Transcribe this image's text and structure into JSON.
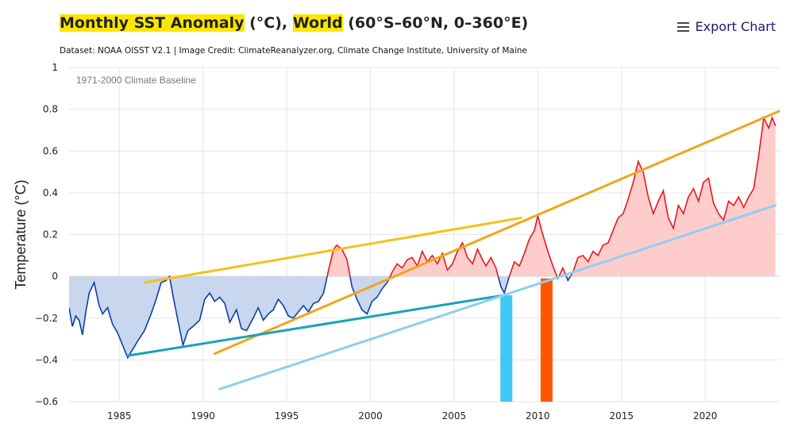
{
  "header": {
    "title_part1": "Monthly SST Anomaly",
    "title_part2": " (°C), ",
    "title_part3": "World",
    "title_part4": " (60°S–60°N",
    "title_part5": ", 0–360°E)",
    "subtitle": "Dataset: NOAA OISST V2.1 | Image Credit: ClimateReanalyzer.org, Climate Change Institute, University of Maine",
    "export_label": "Export Chart"
  },
  "chart_data": {
    "type": "area",
    "title": "Monthly SST Anomaly (°C), World (60°S–60°N, 0–360°E)",
    "ylabel": "Temperature (°C)",
    "xlabel": "",
    "annotation": "1971-2000 Climate Baseline",
    "xlim": [
      1982.0,
      2024.5
    ],
    "ylim": [
      -0.6,
      1
    ],
    "x_ticks": [
      1985,
      1990,
      1995,
      2000,
      2005,
      2010,
      2015,
      2020
    ],
    "y_ticks": [
      -0.6,
      -0.4,
      -0.2,
      0,
      0.2,
      0.4,
      0.6,
      0.8,
      1
    ],
    "y_tick_labels": [
      "−0.6",
      "−0.4",
      "−0.2",
      "0",
      "0.2",
      "0.4",
      "0.6",
      "0.8",
      "1"
    ],
    "positive_color": "#e41a1c",
    "positive_fill": "#ffcccc",
    "negative_color": "#0d3ea6",
    "negative_fill": "#c8d6ee",
    "series": [
      {
        "name": "SST anomaly",
        "points": [
          [
            1982.0,
            -0.15
          ],
          [
            1982.2,
            -0.24
          ],
          [
            1982.4,
            -0.19
          ],
          [
            1982.6,
            -0.21
          ],
          [
            1982.8,
            -0.28
          ],
          [
            1983.0,
            -0.17
          ],
          [
            1983.2,
            -0.08
          ],
          [
            1983.5,
            -0.03
          ],
          [
            1983.8,
            -0.14
          ],
          [
            1984.0,
            -0.18
          ],
          [
            1984.3,
            -0.15
          ],
          [
            1984.6,
            -0.23
          ],
          [
            1984.9,
            -0.27
          ],
          [
            1985.2,
            -0.33
          ],
          [
            1985.5,
            -0.39
          ],
          [
            1985.8,
            -0.35
          ],
          [
            1986.1,
            -0.31
          ],
          [
            1986.5,
            -0.26
          ],
          [
            1986.9,
            -0.18
          ],
          [
            1987.2,
            -0.11
          ],
          [
            1987.5,
            -0.03
          ],
          [
            1987.8,
            -0.02
          ],
          [
            1988.0,
            0.0
          ],
          [
            1988.2,
            -0.09
          ],
          [
            1988.5,
            -0.21
          ],
          [
            1988.8,
            -0.33
          ],
          [
            1989.1,
            -0.26
          ],
          [
            1989.4,
            -0.24
          ],
          [
            1989.8,
            -0.21
          ],
          [
            1990.1,
            -0.11
          ],
          [
            1990.4,
            -0.08
          ],
          [
            1990.7,
            -0.12
          ],
          [
            1991.0,
            -0.1
          ],
          [
            1991.3,
            -0.13
          ],
          [
            1991.6,
            -0.22
          ],
          [
            1992.0,
            -0.16
          ],
          [
            1992.3,
            -0.25
          ],
          [
            1992.6,
            -0.26
          ],
          [
            1993.0,
            -0.2
          ],
          [
            1993.3,
            -0.15
          ],
          [
            1993.6,
            -0.21
          ],
          [
            1993.9,
            -0.18
          ],
          [
            1994.2,
            -0.16
          ],
          [
            1994.5,
            -0.11
          ],
          [
            1994.8,
            -0.14
          ],
          [
            1995.1,
            -0.19
          ],
          [
            1995.4,
            -0.2
          ],
          [
            1995.7,
            -0.17
          ],
          [
            1996.0,
            -0.14
          ],
          [
            1996.3,
            -0.17
          ],
          [
            1996.6,
            -0.13
          ],
          [
            1996.9,
            -0.12
          ],
          [
            1997.2,
            -0.08
          ],
          [
            1997.5,
            0.03
          ],
          [
            1997.8,
            0.13
          ],
          [
            1998.0,
            0.15
          ],
          [
            1998.3,
            0.13
          ],
          [
            1998.6,
            0.08
          ],
          [
            1998.9,
            -0.05
          ],
          [
            1999.2,
            -0.11
          ],
          [
            1999.5,
            -0.16
          ],
          [
            1999.8,
            -0.18
          ],
          [
            2000.1,
            -0.12
          ],
          [
            2000.4,
            -0.1
          ],
          [
            2000.7,
            -0.06
          ],
          [
            2001.0,
            -0.03
          ],
          [
            2001.3,
            0.02
          ],
          [
            2001.6,
            0.06
          ],
          [
            2001.9,
            0.04
          ],
          [
            2002.2,
            0.08
          ],
          [
            2002.5,
            0.09
          ],
          [
            2002.8,
            0.05
          ],
          [
            2003.1,
            0.12
          ],
          [
            2003.4,
            0.07
          ],
          [
            2003.7,
            0.1
          ],
          [
            2004.0,
            0.06
          ],
          [
            2004.3,
            0.11
          ],
          [
            2004.6,
            0.03
          ],
          [
            2004.9,
            0.06
          ],
          [
            2005.2,
            0.12
          ],
          [
            2005.5,
            0.16
          ],
          [
            2005.8,
            0.09
          ],
          [
            2006.1,
            0.06
          ],
          [
            2006.4,
            0.13
          ],
          [
            2006.7,
            0.08
          ],
          [
            2006.9,
            0.05
          ],
          [
            2007.2,
            0.09
          ],
          [
            2007.5,
            0.04
          ],
          [
            2007.8,
            -0.05
          ],
          [
            2008.0,
            -0.08
          ],
          [
            2008.3,
            0.0
          ],
          [
            2008.6,
            0.07
          ],
          [
            2008.9,
            0.05
          ],
          [
            2009.2,
            0.11
          ],
          [
            2009.5,
            0.18
          ],
          [
            2009.8,
            0.22
          ],
          [
            2010.0,
            0.29
          ],
          [
            2010.3,
            0.2
          ],
          [
            2010.6,
            0.12
          ],
          [
            2010.9,
            0.05
          ],
          [
            2011.2,
            -0.01
          ],
          [
            2011.5,
            0.04
          ],
          [
            2011.8,
            -0.02
          ],
          [
            2012.1,
            0.02
          ],
          [
            2012.4,
            0.09
          ],
          [
            2012.7,
            0.1
          ],
          [
            2013.0,
            0.07
          ],
          [
            2013.3,
            0.12
          ],
          [
            2013.6,
            0.1
          ],
          [
            2013.9,
            0.15
          ],
          [
            2014.2,
            0.16
          ],
          [
            2014.5,
            0.22
          ],
          [
            2014.8,
            0.28
          ],
          [
            2015.1,
            0.3
          ],
          [
            2015.4,
            0.37
          ],
          [
            2015.7,
            0.45
          ],
          [
            2016.0,
            0.55
          ],
          [
            2016.3,
            0.5
          ],
          [
            2016.6,
            0.38
          ],
          [
            2016.9,
            0.3
          ],
          [
            2017.2,
            0.36
          ],
          [
            2017.5,
            0.41
          ],
          [
            2017.8,
            0.28
          ],
          [
            2018.1,
            0.23
          ],
          [
            2018.4,
            0.34
          ],
          [
            2018.7,
            0.3
          ],
          [
            2019.0,
            0.38
          ],
          [
            2019.3,
            0.42
          ],
          [
            2019.6,
            0.36
          ],
          [
            2019.9,
            0.45
          ],
          [
            2020.2,
            0.47
          ],
          [
            2020.5,
            0.35
          ],
          [
            2020.8,
            0.3
          ],
          [
            2021.1,
            0.27
          ],
          [
            2021.4,
            0.36
          ],
          [
            2021.7,
            0.34
          ],
          [
            2022.0,
            0.38
          ],
          [
            2022.3,
            0.33
          ],
          [
            2022.6,
            0.38
          ],
          [
            2022.9,
            0.42
          ],
          [
            2023.2,
            0.58
          ],
          [
            2023.5,
            0.76
          ],
          [
            2023.8,
            0.71
          ],
          [
            2024.0,
            0.76
          ],
          [
            2024.2,
            0.72
          ]
        ]
      }
    ],
    "trend_lines": [
      {
        "name": "yellow-trend",
        "color": "#f2c318",
        "x0": 1986.5,
        "y0": -0.03,
        "x1": 2009.0,
        "y1": 0.28
      },
      {
        "name": "orange-trend",
        "color": "#efa51c",
        "x0": 1990.7,
        "y0": -0.37,
        "x1": 2024.4,
        "y1": 0.79
      },
      {
        "name": "teal-trend",
        "color": "#17a2b8",
        "x0": 1985.5,
        "y0": -0.38,
        "x1": 2008.0,
        "y1": -0.09
      },
      {
        "name": "light-blue-trend",
        "color": "#8dcff0",
        "x0": 1991.0,
        "y0": -0.54,
        "x1": 2024.2,
        "y1": 0.34
      }
    ],
    "markers": [
      {
        "name": "marker-2008",
        "color": "#3fc7f5",
        "x": 2008.1,
        "y_top": -0.09
      },
      {
        "name": "marker-2010",
        "color": "#ff5500",
        "x": 2010.5,
        "y_top": -0.01
      }
    ]
  }
}
